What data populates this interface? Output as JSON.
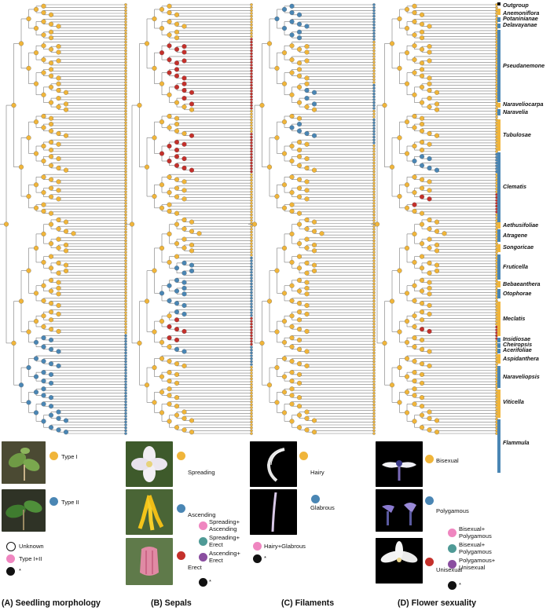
{
  "colors": {
    "orange": "#f0b53a",
    "blue": "#4a86b4",
    "red": "#c4302b",
    "pink": "#ef86c0",
    "teal": "#4f9a96",
    "purple": "#8a4ea0",
    "black": "#111111",
    "branch": "#7a7a7a"
  },
  "clades": [
    {
      "name": "Outgroup",
      "bar_color": "black"
    },
    {
      "name": "Anemoniflora",
      "bar_color": "orange"
    },
    {
      "name": "Potaninianae",
      "bar_color": "blue"
    },
    {
      "name": "Delavayanae",
      "bar_color": "blue"
    },
    {
      "name": "Pseudanemone",
      "bar_color": "blue"
    },
    {
      "name": "Naraveliocarpa",
      "bar_color": "orange"
    },
    {
      "name": "Naravelia",
      "bar_color": "blue"
    },
    {
      "name": "Tubulosae",
      "bar_color": "orange"
    },
    {
      "name": "Clematis",
      "bar_color": "blue"
    },
    {
      "name": "Aethusifoliae",
      "bar_color": "orange"
    },
    {
      "name": "Atragene",
      "bar_color": "blue"
    },
    {
      "name": "Songoricae",
      "bar_color": "orange"
    },
    {
      "name": "Fruticella",
      "bar_color": "blue"
    },
    {
      "name": "Bebaeanthera",
      "bar_color": "orange"
    },
    {
      "name": "Otophorae",
      "bar_color": "blue"
    },
    {
      "name": "Meclatis",
      "bar_color": "orange"
    },
    {
      "name": "Insidiosae",
      "bar_color": "blue"
    },
    {
      "name": "Cheiropsis",
      "bar_color": "blue"
    },
    {
      "name": "Acerifoliae",
      "bar_color": "blue"
    },
    {
      "name": "Aspidanthera",
      "bar_color": "orange"
    },
    {
      "name": "Naraveliopsis",
      "bar_color": "blue"
    },
    {
      "name": "Viticella",
      "bar_color": "orange"
    },
    {
      "name": "Flammula",
      "bar_color": "blue"
    }
  ],
  "panels": [
    {
      "id": "A",
      "caption": "(A) Seedling morphology",
      "photos": [
        "seedling-type-i",
        "seedling-type-ii"
      ],
      "legend": [
        {
          "label": "Type I",
          "color": "orange"
        },
        {
          "label": "Type II",
          "color": "blue"
        },
        {
          "label": "Unknown",
          "color": "white"
        },
        {
          "label": "Type I+II",
          "color": "pink"
        },
        {
          "label": "*",
          "color": "black"
        }
      ]
    },
    {
      "id": "B",
      "caption": "(B) Sepals",
      "photos": [
        "sepals-spreading",
        "sepals-ascending",
        "sepals-erect"
      ],
      "legend": [
        {
          "label": "Spreading",
          "color": "orange"
        },
        {
          "label": "Ascending",
          "color": "blue"
        },
        {
          "label": "Erect",
          "color": "red"
        },
        {
          "label": "Spreading+\nAscending",
          "color": "pink"
        },
        {
          "label": "Spreading+\nErect",
          "color": "teal"
        },
        {
          "label": "Ascending+\nErect",
          "color": "purple"
        },
        {
          "label": "*",
          "color": "black"
        }
      ]
    },
    {
      "id": "C",
      "caption": "(C) Filaments",
      "photos": [
        "filament-hairy",
        "filament-glabrous"
      ],
      "legend": [
        {
          "label": "Hairy",
          "color": "orange"
        },
        {
          "label": "Glabrous",
          "color": "blue"
        },
        {
          "label": "Hairy+Glabrous",
          "color": "pink"
        },
        {
          "label": "*",
          "color": "black"
        }
      ]
    },
    {
      "id": "D",
      "caption": "(D) Flower sexuality",
      "photos": [
        "flower-bisexual",
        "flower-polygamous",
        "flower-unisexual"
      ],
      "legend": [
        {
          "label": "Bisexual",
          "color": "orange"
        },
        {
          "label": "Polygamous",
          "color": "blue"
        },
        {
          "label": "Unisexual",
          "color": "red"
        },
        {
          "label": "Bisexual+\nPolygamous",
          "color": "pink"
        },
        {
          "label": "Bisexual+\nPolygamous",
          "color": "teal"
        },
        {
          "label": "Polygamous+\nUnisexual",
          "color": "purple"
        },
        {
          "label": "*",
          "color": "black"
        }
      ]
    }
  ]
}
